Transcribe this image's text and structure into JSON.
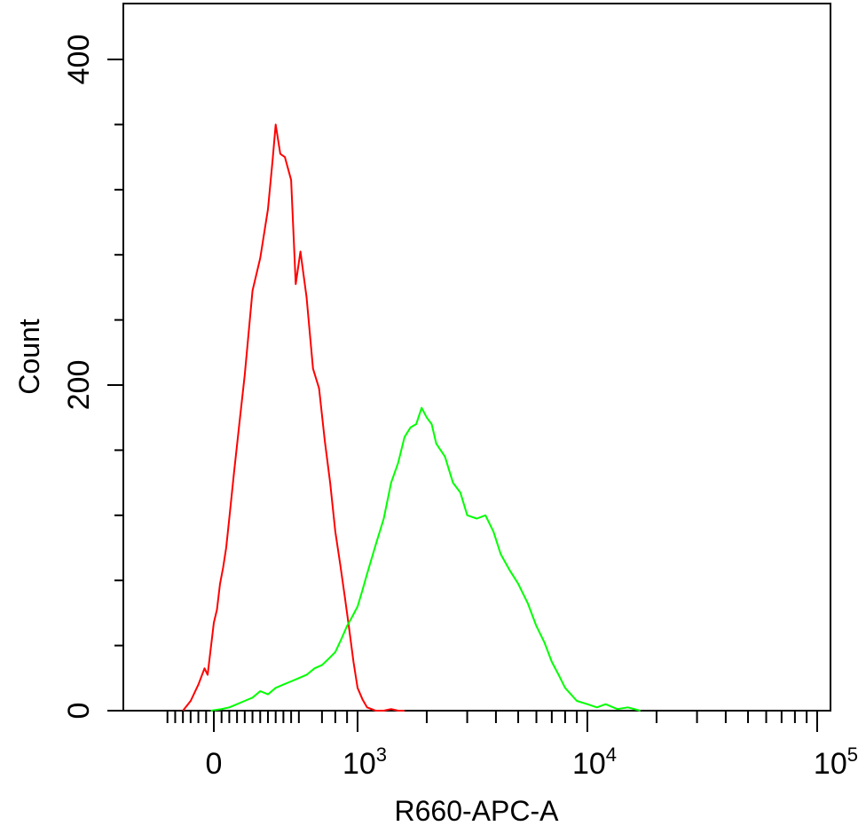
{
  "chart_data": {
    "type": "line",
    "title": "",
    "xlabel": "R660-APC-A",
    "ylabel": "Count",
    "x_scale": "biexponential",
    "xlim": [
      -350,
      100000
    ],
    "ylim": [
      0,
      400
    ],
    "x_ticks": [
      {
        "value": 0,
        "base": "0",
        "exp": ""
      },
      {
        "value": 1000,
        "base": "10",
        "exp": "3"
      },
      {
        "value": 10000,
        "base": "10",
        "exp": "4"
      },
      {
        "value": 100000,
        "base": "10",
        "exp": "5"
      }
    ],
    "y_ticks": [
      {
        "value": 0,
        "label": "0"
      },
      {
        "value": 200,
        "label": "200"
      },
      {
        "value": 400,
        "label": "400"
      }
    ],
    "grid": false,
    "legend": "none",
    "series": [
      {
        "color": "#ff0000",
        "x": [
          -200,
          -150,
          -100,
          -60,
          -40,
          -20,
          0,
          20,
          40,
          60,
          80,
          100,
          130,
          160,
          200,
          250,
          300,
          350,
          380,
          400,
          430,
          460,
          500,
          530,
          560,
          600,
          640,
          680,
          720,
          760,
          800,
          840,
          880,
          920,
          960,
          1000,
          1050,
          1100,
          1150,
          1200,
          1300,
          1400,
          1500,
          1600
        ],
        "y": [
          0,
          6,
          16,
          26,
          22,
          38,
          54,
          62,
          78,
          88,
          100,
          118,
          146,
          172,
          206,
          258,
          278,
          308,
          338,
          360,
          342,
          340,
          326,
          262,
          282,
          254,
          210,
          198,
          166,
          140,
          110,
          90,
          70,
          50,
          30,
          14,
          7,
          2,
          1,
          0,
          0,
          1,
          0,
          0
        ],
        "values_unit": "count"
      },
      {
        "color": "#00ff00",
        "x": [
          -20,
          50,
          100,
          150,
          200,
          250,
          300,
          350,
          400,
          450,
          500,
          550,
          600,
          650,
          700,
          750,
          800,
          850,
          900,
          950,
          1000,
          1050,
          1100,
          1200,
          1300,
          1400,
          1500,
          1600,
          1700,
          1800,
          1900,
          2000,
          2100,
          2200,
          2400,
          2600,
          2800,
          3000,
          3300,
          3600,
          3900,
          4200,
          4600,
          5000,
          5500,
          6000,
          6500,
          7000,
          7500,
          8000,
          9000,
          10000,
          11000,
          12000,
          13500,
          15000,
          17000
        ],
        "y": [
          0,
          1,
          2,
          4,
          6,
          8,
          12,
          10,
          14,
          16,
          18,
          20,
          22,
          26,
          28,
          32,
          36,
          44,
          52,
          58,
          64,
          74,
          84,
          102,
          118,
          140,
          152,
          168,
          174,
          176,
          186,
          180,
          176,
          164,
          156,
          140,
          134,
          120,
          118,
          120,
          110,
          96,
          86,
          78,
          66,
          52,
          42,
          30,
          22,
          14,
          6,
          4,
          2,
          4,
          1,
          2,
          0
        ],
        "values_unit": "count"
      }
    ]
  }
}
